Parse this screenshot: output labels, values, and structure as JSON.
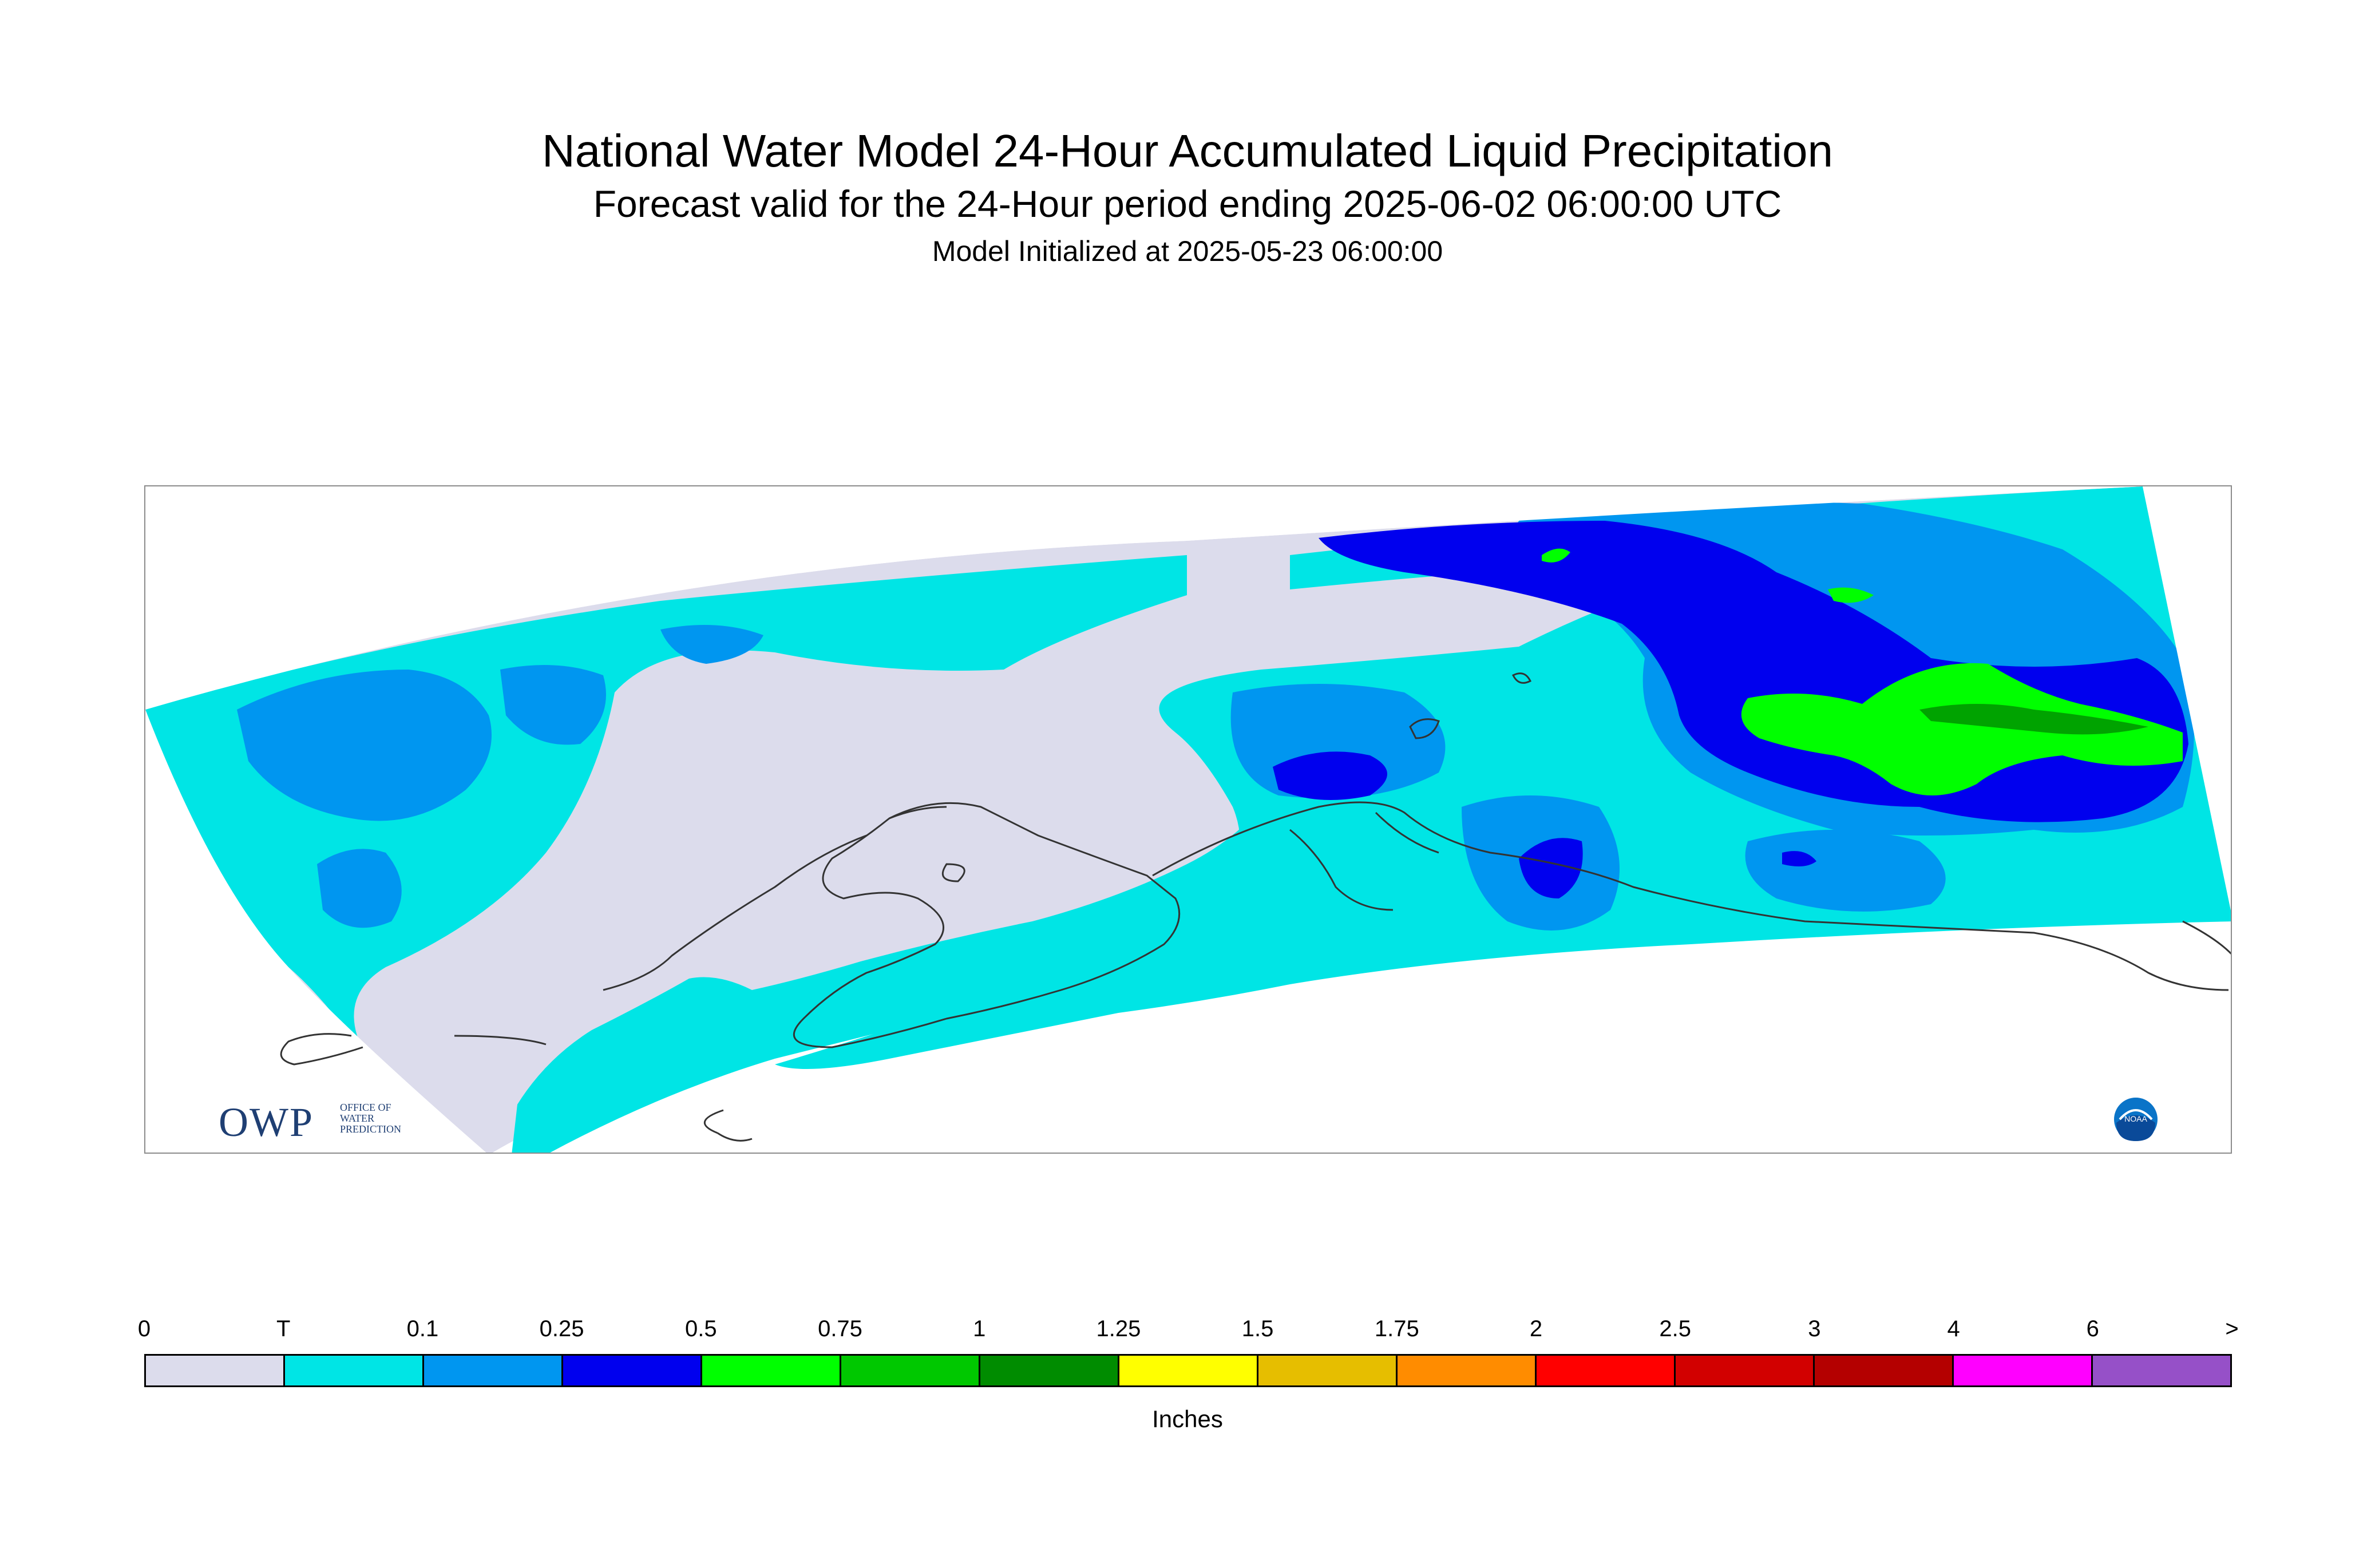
{
  "title": {
    "line1": "National Water Model 24-Hour Accumulated Liquid Precipitation",
    "line2": "Forecast valid for the 24-Hour period ending 2025-06-02 06:00:00 UTC",
    "line3": "Model Initialized at 2025-05-23 06:00:00"
  },
  "logos": {
    "owp": {
      "big": "OWP",
      "small": [
        "OFFICE OF",
        "WATER",
        "PREDICTION"
      ]
    },
    "noaa": {
      "text": "NOAA"
    }
  },
  "legend": {
    "labels": [
      "0",
      "T",
      "0.1",
      "0.25",
      "0.5",
      "0.75",
      "1",
      "1.25",
      "1.5",
      "1.75",
      "2",
      "2.5",
      "3",
      "4",
      "6",
      ">"
    ],
    "colors": [
      "#dcdcec",
      "#00e5e5",
      "#0096f0",
      "#0000ee",
      "#00ff00",
      "#00c800",
      "#008c00",
      "#ffff00",
      "#e6be00",
      "#ff8c00",
      "#ff0000",
      "#d20000",
      "#b40000",
      "#ff00ff",
      "#9650c8"
    ],
    "units": "Inches"
  },
  "map": {
    "colors": {
      "nodata": "#ffffff",
      "zero": "#dcdcec",
      "trace": "#00e5e5",
      "p01": "#0096f0",
      "p025": "#0000ee",
      "p05": "#00ff00",
      "p075": "#00c800",
      "p1": "#008c00",
      "coast": "#333333",
      "frame": "#8c8c8c"
    }
  }
}
